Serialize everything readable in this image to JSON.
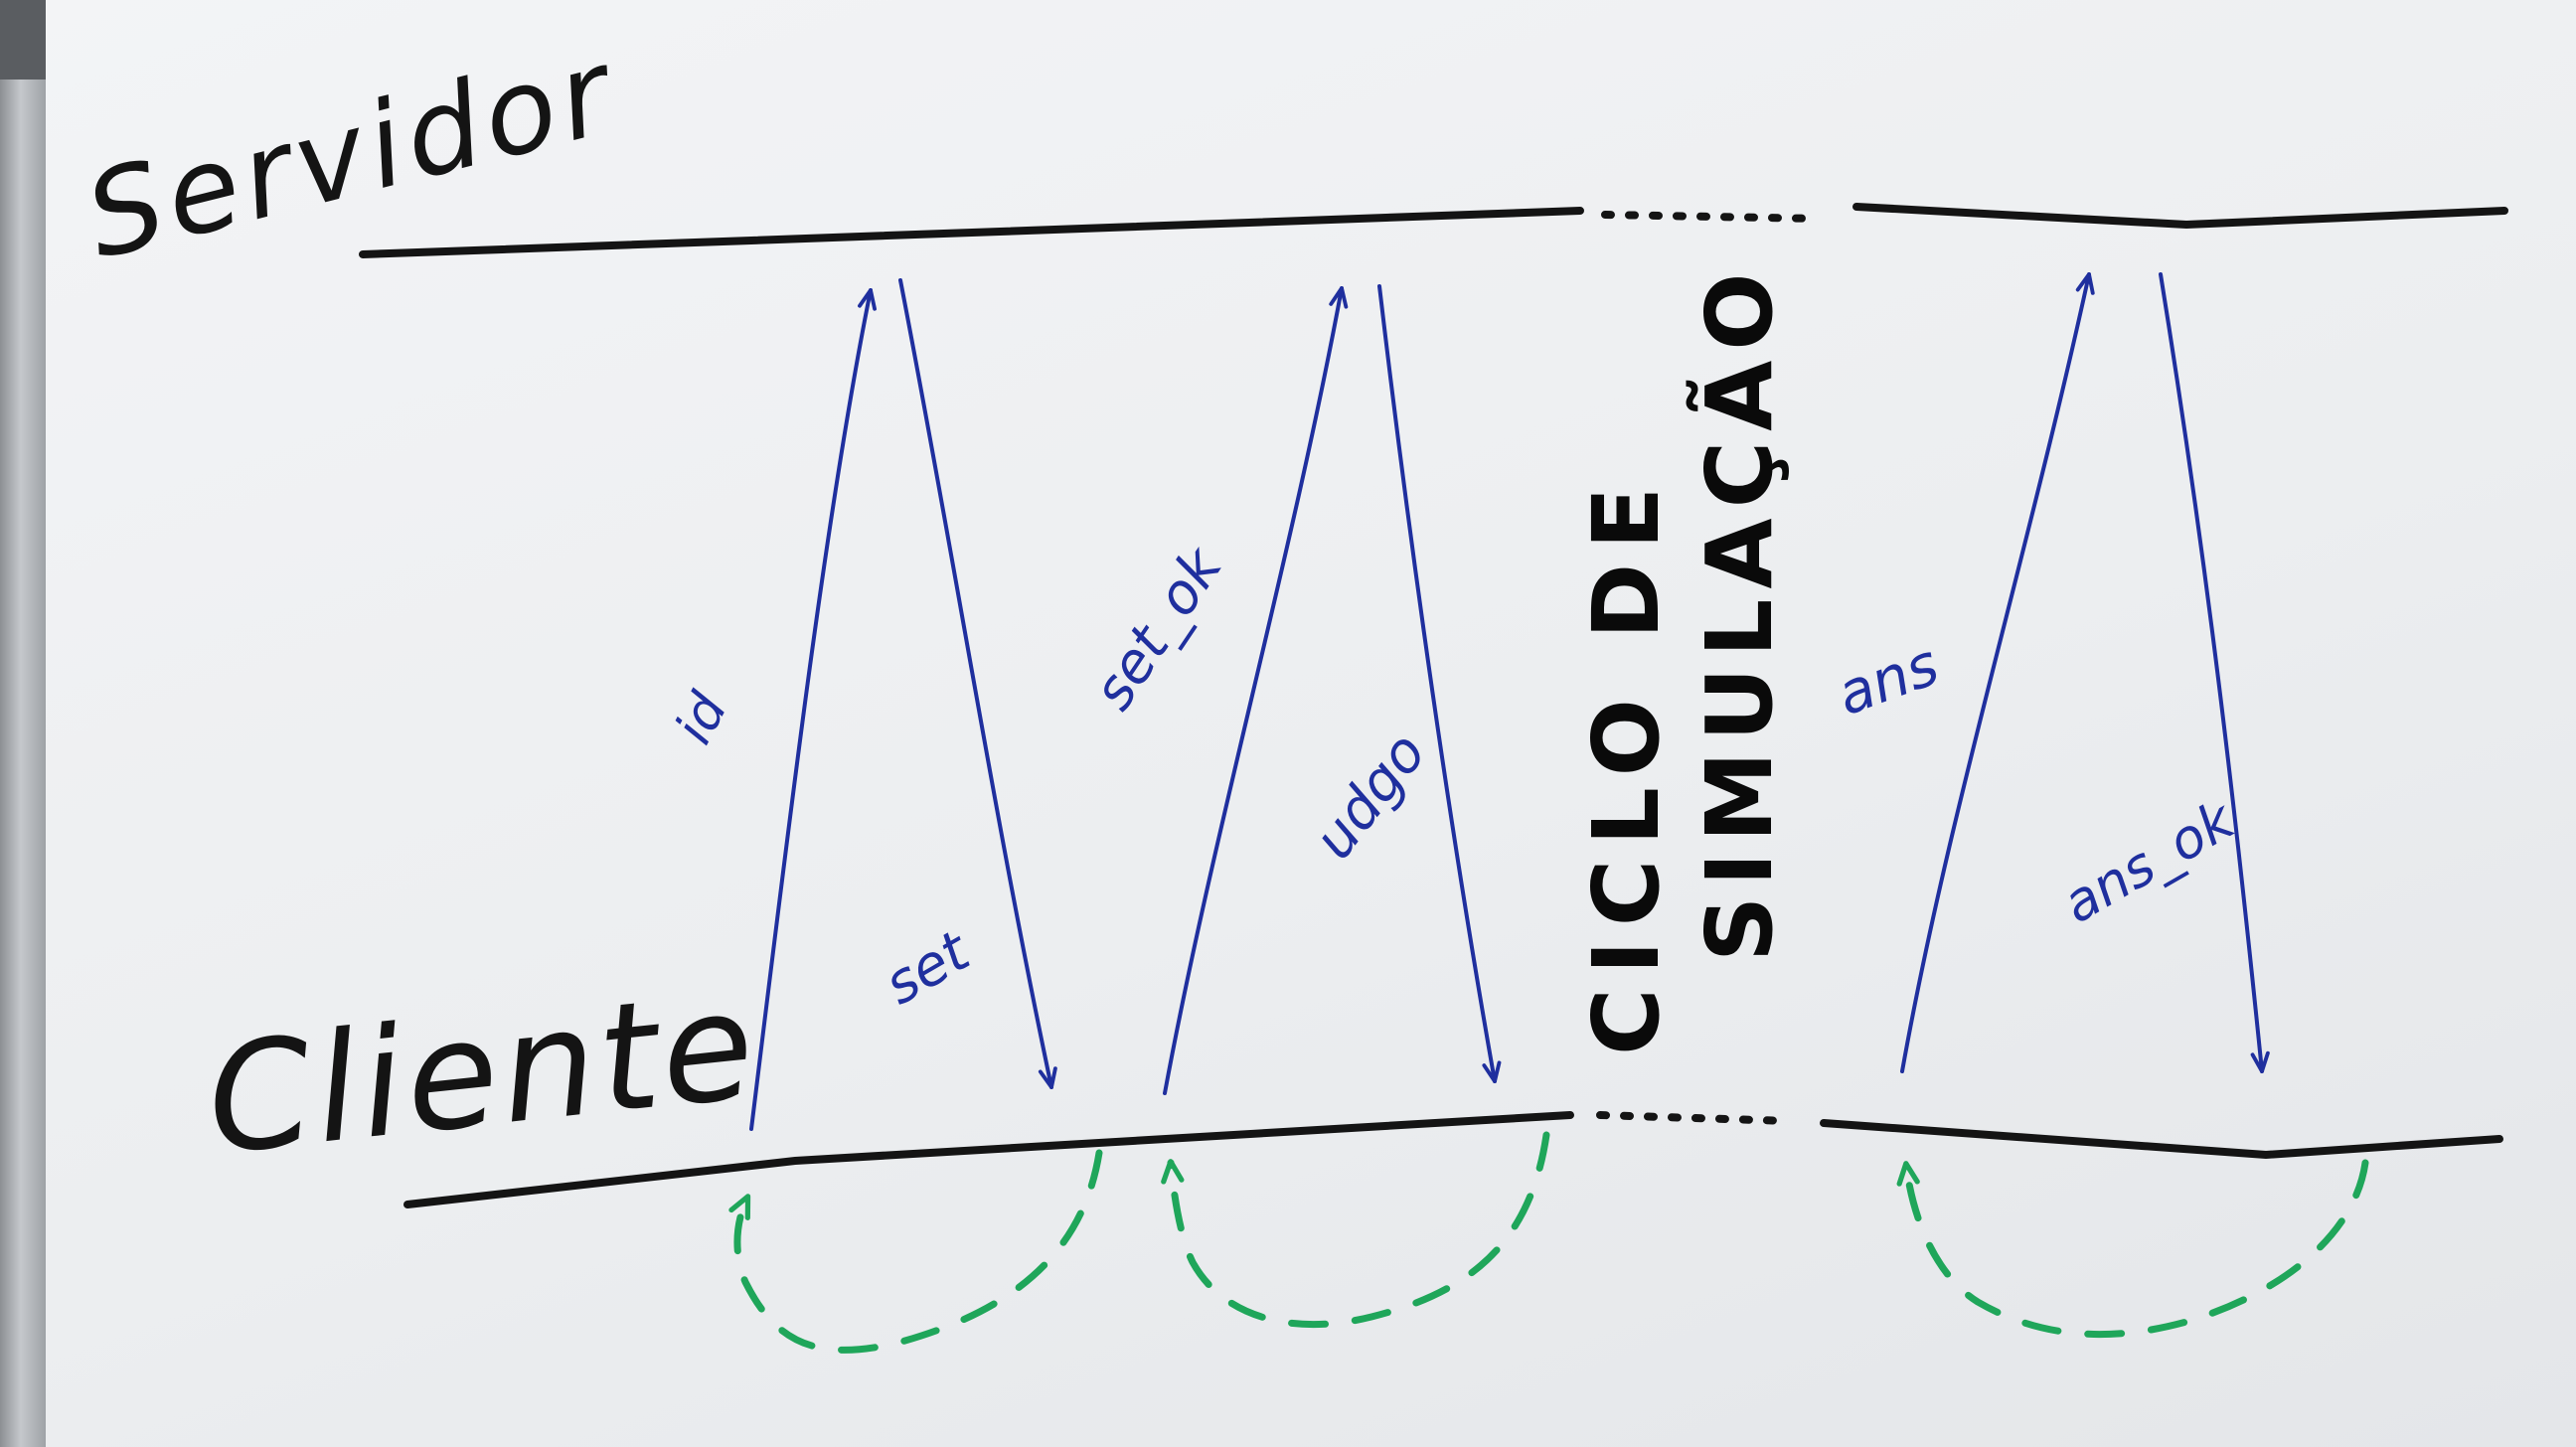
{
  "lanes": {
    "server_label": "Servidor",
    "client_label": "Cliente"
  },
  "messages": [
    {
      "label": "id",
      "direction": "client-to-server"
    },
    {
      "label": "set",
      "direction": "server-to-client"
    },
    {
      "label": "set_ok",
      "direction": "client-to-server"
    },
    {
      "label": "udgo",
      "direction": "server-to-client"
    },
    {
      "label": "ans",
      "direction": "client-to-server"
    },
    {
      "label": "ans_ok",
      "direction": "server-to-client"
    }
  ],
  "cycle_label": {
    "line1": "CICLO DE",
    "line2": "SIMULAÇÃO"
  },
  "colors": {
    "ink_black": "#141414",
    "ink_blue": "#1f2f9e",
    "ink_green": "#1fa65a",
    "board": "#eef0f2"
  }
}
